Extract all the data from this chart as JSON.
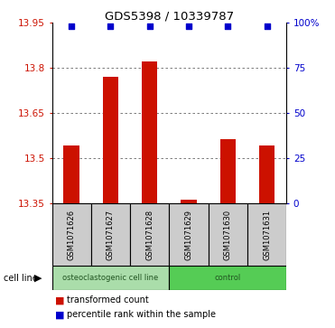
{
  "title": "GDS5398 / 10339787",
  "samples": [
    "GSM1071626",
    "GSM1071627",
    "GSM1071628",
    "GSM1071629",
    "GSM1071630",
    "GSM1071631"
  ],
  "bar_values": [
    13.543,
    13.772,
    13.822,
    13.362,
    13.563,
    13.543
  ],
  "percentile_values": [
    98,
    98,
    98,
    98,
    98,
    98
  ],
  "ylim_left": [
    13.35,
    13.95
  ],
  "ylim_right": [
    0,
    100
  ],
  "yticks_left": [
    13.35,
    13.5,
    13.65,
    13.8,
    13.95
  ],
  "yticks_right": [
    0,
    25,
    50,
    75,
    100
  ],
  "ytick_labels_right": [
    "0",
    "25",
    "50",
    "75",
    "100%"
  ],
  "bar_color": "#cc1100",
  "dot_color": "#0000cc",
  "groups": [
    {
      "label": "osteoclastogenic cell line",
      "indices": [
        0,
        1,
        2
      ],
      "color": "#aaddaa"
    },
    {
      "label": "control",
      "indices": [
        3,
        4,
        5
      ],
      "color": "#55cc55"
    }
  ],
  "cell_line_label": "cell line",
  "legend_bar_label": "transformed count",
  "legend_dot_label": "percentile rank within the sample",
  "grid_color": "#666666",
  "sample_box_color": "#cccccc",
  "base_value": 13.35,
  "bar_width": 0.4
}
